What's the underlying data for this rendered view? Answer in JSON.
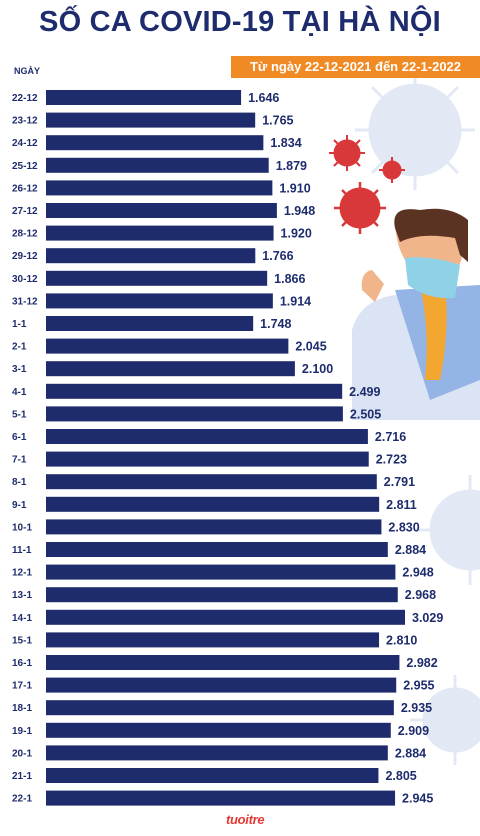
{
  "title": "SỐ CA COVID-19 TẠI HÀ NỘI",
  "subtitle": "Từ ngày 22-12-2021 đến 22-1-2022",
  "axis_title": "NGÀY",
  "logo_text": "tuoitre",
  "colors": {
    "bar": "#1e2c6d",
    "text": "#1e2c6d",
    "subtitle_bg": "#f08a24",
    "virus": "#d9383b",
    "virus_faint": "#dde3f3"
  },
  "icons": [
    "virus-icon",
    "person-with-mask-illustration",
    "tuoitre-logo"
  ],
  "chart_data": {
    "type": "bar",
    "orientation": "horizontal",
    "categories": [
      "22-12",
      "23-12",
      "24-12",
      "25-12",
      "26-12",
      "27-12",
      "28-12",
      "29-12",
      "30-12",
      "31-12",
      "1-1",
      "2-1",
      "3-1",
      "4-1",
      "5-1",
      "6-1",
      "7-1",
      "8-1",
      "9-1",
      "10-1",
      "11-1",
      "12-1",
      "13-1",
      "14-1",
      "15-1",
      "16-1",
      "17-1",
      "18-1",
      "19-1",
      "20-1",
      "21-1",
      "22-1"
    ],
    "values": [
      1646,
      1765,
      1834,
      1879,
      1910,
      1948,
      1920,
      1766,
      1866,
      1914,
      1748,
      2045,
      2100,
      2499,
      2505,
      2716,
      2723,
      2791,
      2811,
      2830,
      2884,
      2948,
      2968,
      3029,
      2810,
      2982,
      2955,
      2935,
      2909,
      2884,
      2805,
      2945
    ],
    "value_labels": [
      "1.646",
      "1.765",
      "1.834",
      "1.879",
      "1.910",
      "1.948",
      "1.920",
      "1.766",
      "1.866",
      "1.914",
      "1.748",
      "2.045",
      "2.100",
      "2.499",
      "2.505",
      "2.716",
      "2.723",
      "2.791",
      "2.811",
      "2.830",
      "2.884",
      "2.948",
      "2.968",
      "3.029",
      "2.810",
      "2.982",
      "2.955",
      "2.935",
      "2.909",
      "2.884",
      "2.805",
      "2.945"
    ],
    "title": "SỐ CA COVID-19 TẠI HÀ NỘI",
    "subtitle": "Từ ngày 22-12-2021 đến 22-1-2022",
    "xlabel": "",
    "ylabel": "NGÀY",
    "xlim": [
      0,
      3029
    ],
    "grid": false,
    "legend": "none"
  }
}
